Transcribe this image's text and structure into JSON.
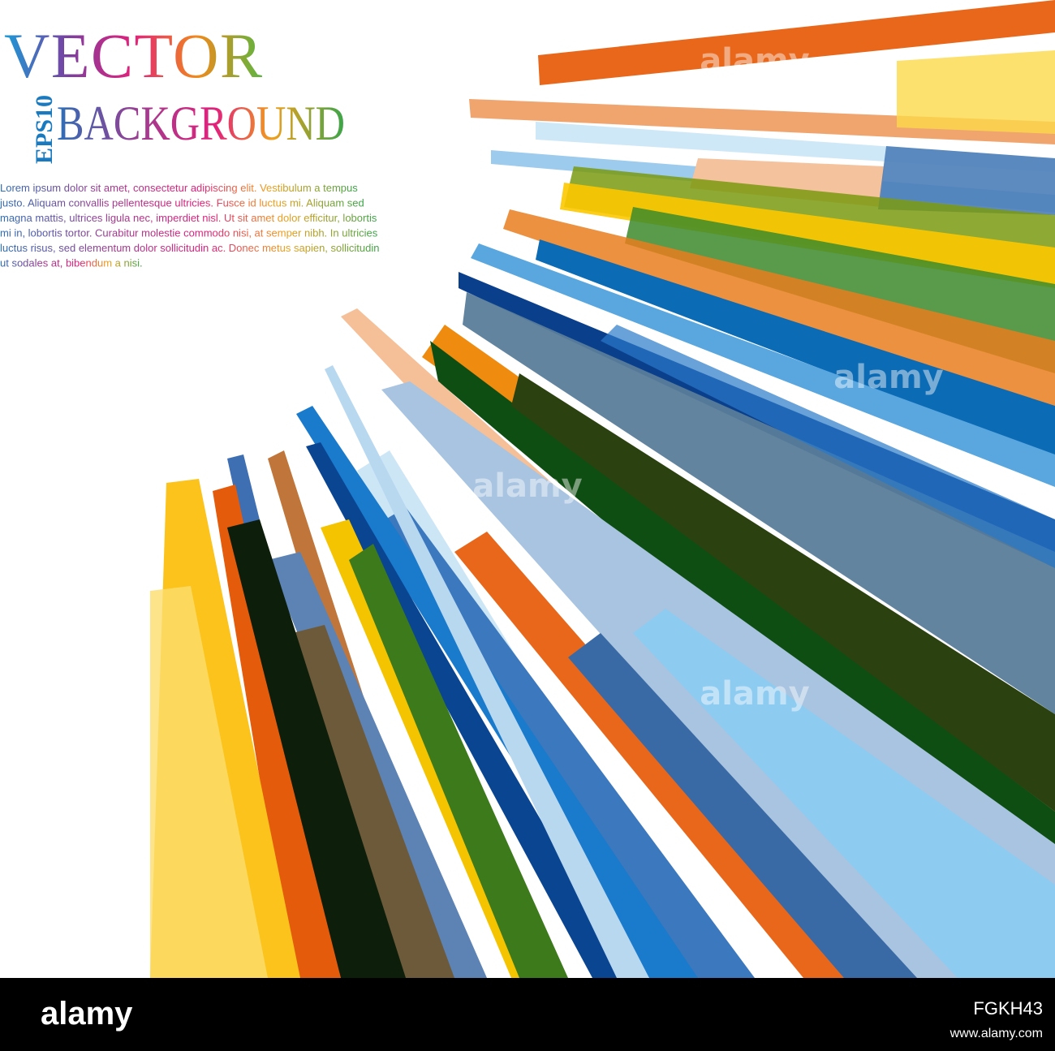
{
  "heading": {
    "title": "VECTOR",
    "subtitle": "BACKGROUND",
    "badge": "EPS10"
  },
  "body_lines": [
    "Lorem ipsum dolor sit amet, consectetur adipiscing elit. Vestibulum a tempus",
    "justo. Aliquam convallis pellentesque ultricies. Fusce id luctus mi. Aliquam sed",
    "magna mattis, ultrices ligula nec, imperdiet nisl. Ut sit amet dolor efficitur, lobortis",
    "mi in, lobortis tortor. Curabitur molestie commodo nisi, at semper nibh. In ultricies",
    "luctus risus, sed elementum dolor sollicitudin ac. Donec metus sapien, sollicitudin",
    "ut sodales at, bibendum a nisi."
  ],
  "watermark": "alamy",
  "footer": {
    "logo": "alamy",
    "image_id": "FGKH43",
    "url": "www.alamy.com"
  }
}
